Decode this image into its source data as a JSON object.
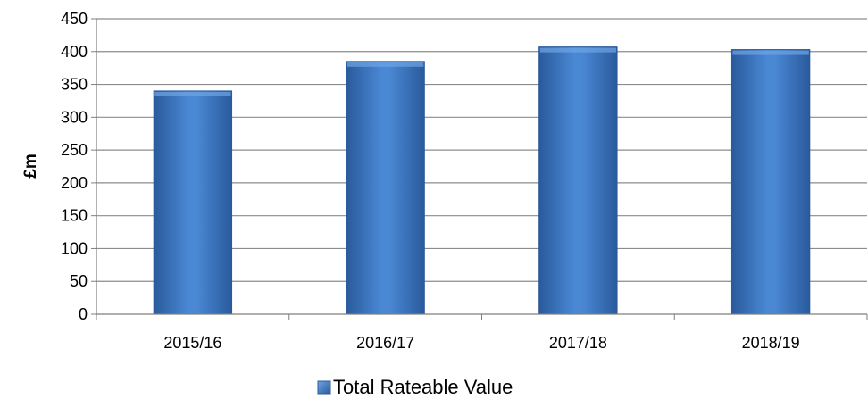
{
  "chart_data": {
    "type": "bar",
    "title": "",
    "ylabel": "£m",
    "xlabel": "",
    "categories": [
      "2015/16",
      "2016/17",
      "2017/18",
      "2018/19"
    ],
    "series": [
      {
        "name": "Total Rateable Value",
        "values": [
          340,
          385,
          407,
          403
        ]
      }
    ],
    "ylim": [
      0,
      450
    ],
    "yticks": [
      0,
      50,
      100,
      150,
      200,
      250,
      300,
      350,
      400,
      450
    ],
    "grid": true,
    "legend_position": "bottom",
    "colors": {
      "bar": "#3F7BC8",
      "bar_dark": "#2A5A9C",
      "bar_light": "#6FA5E6",
      "grid": "#8C8C8C"
    }
  }
}
